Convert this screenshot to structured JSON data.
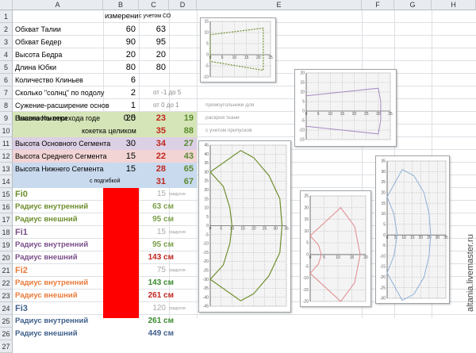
{
  "columns": [
    "A",
    "B",
    "C",
    "D",
    "E",
    "F",
    "G",
    "H"
  ],
  "rows": [
    "1",
    "2",
    "3",
    "4",
    "5",
    "6",
    "7",
    "8",
    "9",
    "10",
    "11",
    "12",
    "13",
    "14",
    "15",
    "16",
    "17",
    "18",
    "19",
    "20",
    "21",
    "22",
    "23",
    "24",
    "25",
    "26",
    "27"
  ],
  "header_labels": {
    "b1": "измерени",
    "c1": "с учетом СО"
  },
  "params": [
    {
      "label": "Обхват Талии",
      "b": "60",
      "c": "63"
    },
    {
      "label": "Обхват Бедер",
      "b": "90",
      "c": "95"
    },
    {
      "label": "Высота Бедра",
      "b": "20",
      "c": "20"
    },
    {
      "label": "Длина Юбки",
      "b": "80",
      "c": "80"
    },
    {
      "label": "Количество Клиньев",
      "b": "6",
      "c": ""
    },
    {
      "label": "Сколько \"солнц\" по подолу",
      "b": "2",
      "c": ""
    },
    {
      "label": "Сужение-расширение основ",
      "b": "1",
      "c": ""
    },
    {
      "label": "Плавность перехода годе",
      "b": "0.5",
      "c": ""
    }
  ],
  "notes": {
    "r8": "от -1 до 5",
    "r9": "от 0 до 1",
    "r9e": "прямоугольники для",
    "r10e": "раскроя ткани",
    "r11e": "с учетом припусков"
  },
  "segments": [
    {
      "label": "Высота Кокетки",
      "b": "20",
      "c": "23",
      "d": "19"
    },
    {
      "label": "кокетка целиком",
      "b": "",
      "c": "35",
      "d": "88"
    },
    {
      "label": "Высота Основного Сегмента",
      "b": "30",
      "c": "34",
      "d": "27"
    },
    {
      "label": "Высота Среднего Сегмента",
      "b": "15",
      "c": "22",
      "d": "43"
    },
    {
      "label": "Высота Нижнего Сегмента",
      "b": "15",
      "c": "28",
      "d": "65"
    },
    {
      "label": "с подгибкой",
      "b": "",
      "c": "31",
      "d": "67"
    }
  ],
  "fi": [
    {
      "fi": "Fi0",
      "fi_val": "15",
      "unit": "градусов",
      "r_in_label": "Радиус внутренний",
      "r_in": "63 см",
      "r_out_label": "Радиус внешний",
      "r_out": "95 см"
    },
    {
      "fi": "Fi1",
      "fi_val": "15",
      "unit": "градусов",
      "r_in_label": "Радиус внутренний",
      "r_in": "95 см",
      "r_out_label": "Радиус внешний",
      "r_out": "143 см"
    },
    {
      "fi": "Fi2",
      "fi_val": "75",
      "unit": "градусов",
      "r_in_label": "Радиус внутренний",
      "r_in": "143 см",
      "r_out_label": "Радиус внешний",
      "r_out": "261 см"
    },
    {
      "fi": "Fi3",
      "fi_val": "120",
      "unit": "градусов",
      "r_in_label": "Радиус внутренний",
      "r_in": "261 см",
      "r_out_label": "Радиус внешний",
      "r_out": "449 см"
    }
  ],
  "watermark": "altania.livemaster.ru",
  "colors": {
    "green": "#6e8e2e",
    "purple": "#7a4f8a",
    "orange": "#e87a3a",
    "steel": "#3f5f8a",
    "red": "#c0261e",
    "fill_red": "#ff0000",
    "band_green": "#d6e5b8",
    "band_purple": "#dcd0e5",
    "band_pink": "#f2d4d4",
    "band_blue": "#c9daee"
  },
  "chart_data": [
    {
      "type": "line",
      "name": "chart1",
      "xlim": [
        0,
        25
      ],
      "ylim": [
        -10,
        15
      ],
      "xticks": [
        "0",
        "5",
        "10",
        "15",
        "20",
        "25"
      ],
      "yticks": [
        "15",
        "10",
        "5",
        "0",
        "-5",
        "-10"
      ],
      "series": [
        {
          "color": "#6e8e2e"
        }
      ]
    },
    {
      "type": "line",
      "name": "chart2",
      "xlim": [
        0,
        35
      ],
      "ylim": [
        -15,
        20
      ],
      "xticks": [
        "0",
        "5",
        "10",
        "15",
        "20",
        "25",
        "30",
        "35"
      ],
      "yticks": [
        "20",
        "15",
        "10",
        "5",
        "0",
        "-5",
        "-10",
        "-15"
      ],
      "series": [
        {
          "color": "#a78bc4"
        }
      ]
    },
    {
      "type": "line",
      "name": "chart3",
      "xlim": [
        0,
        35
      ],
      "ylim": [
        -45,
        45
      ],
      "xticks": [
        "0",
        "5",
        "10",
        "15",
        "20",
        "25",
        "30",
        "35"
      ],
      "yticks": [
        "45",
        "40",
        "35",
        "30",
        "25",
        "20",
        "15",
        "10",
        "5",
        "0",
        "-5",
        "-10",
        "-15",
        "-20",
        "-25",
        "-30",
        "-35",
        "-40",
        "-45"
      ],
      "series": [
        {
          "color": "#6e8e2e"
        }
      ]
    },
    {
      "type": "line",
      "name": "chart4",
      "xlim": [
        0,
        20
      ],
      "ylim": [
        -20,
        25
      ],
      "xticks": [
        "0",
        "5",
        "10",
        "15",
        "20"
      ],
      "yticks": [
        "25",
        "20",
        "15",
        "10",
        "5",
        "0",
        "-5",
        "-10",
        "-15",
        "-20"
      ],
      "series": [
        {
          "color": "#e08a8e"
        }
      ]
    },
    {
      "type": "line",
      "name": "chart5",
      "xlim": [
        0,
        35
      ],
      "ylim": [
        -30,
        35
      ],
      "xticks": [
        "0",
        "5",
        "10",
        "15",
        "20",
        "25",
        "30",
        "35"
      ],
      "yticks": [
        "35",
        "30",
        "25",
        "20",
        "15",
        "10",
        "5",
        "0",
        "-5",
        "-10",
        "-15",
        "-20",
        "-25",
        "-30"
      ],
      "series": [
        {
          "color": "#8fb0d8"
        }
      ]
    }
  ]
}
